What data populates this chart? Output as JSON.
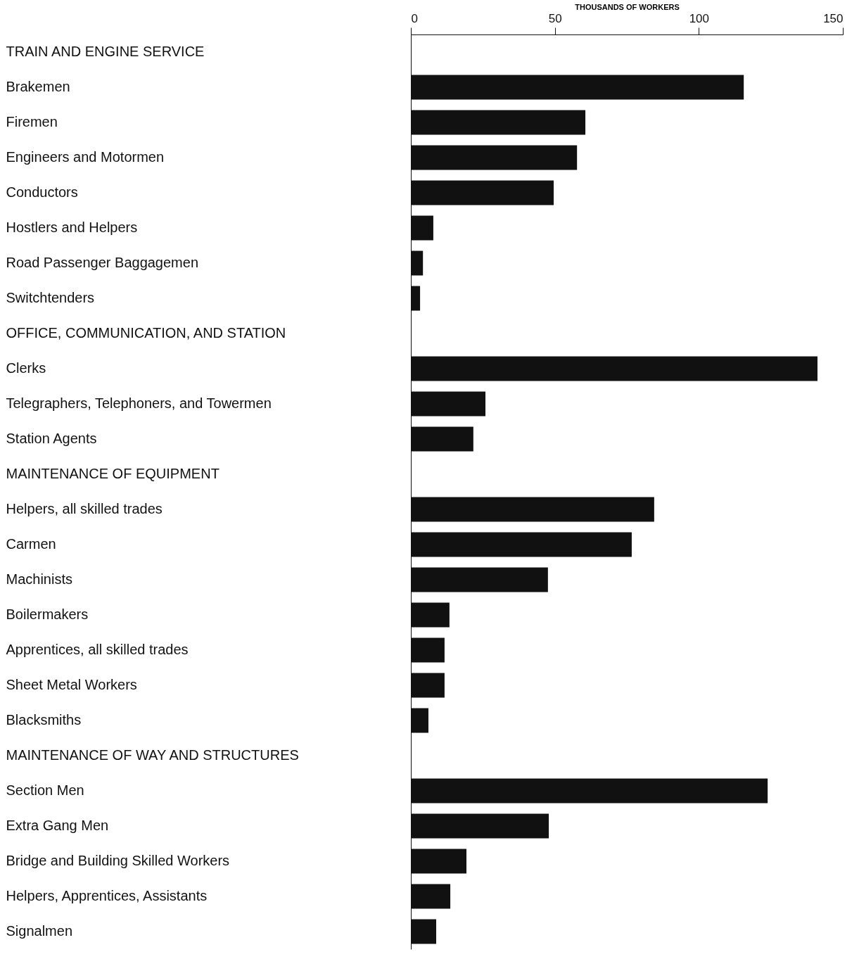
{
  "chart_data": {
    "type": "bar",
    "orientation": "horizontal",
    "xlabel": "THOUSANDS OF WORKERS",
    "categories": [
      "TRAIN AND ENGINE SERVICE",
      "Brakemen",
      "Firemen",
      "Engineers and Motormen",
      "Conductors",
      "Hostlers and Helpers",
      "Road Passenger Baggagemen",
      "Switchtenders",
      "OFFICE, COMMUNICATION, AND STATION",
      "Clerks",
      "Telegraphers, Telephoners, and Towermen",
      "Station Agents",
      "MAINTENANCE OF EQUIPMENT",
      "Helpers, all skilled trades",
      "Carmen",
      "Machinists",
      "Boilermakers",
      "Apprentices, all skilled trades",
      "Sheet Metal Workers",
      "Blacksmiths",
      "MAINTENANCE OF WAY AND STRUCTURES",
      "Section Men",
      "Extra Gang Men",
      "Bridge and Building Skilled Workers",
      "Helpers, Apprentices, Assistants",
      "Signalmen"
    ],
    "values": [
      null,
      115.6,
      60.6,
      57.7,
      49.6,
      7.8,
      4.2,
      3.2,
      null,
      141.2,
      25.9,
      21.7,
      null,
      84.5,
      76.7,
      47.6,
      13.4,
      11.7,
      11.7,
      6.1,
      null,
      123.9,
      47.9,
      19.3,
      13.7,
      8.8
    ],
    "color": "#111111",
    "xlim": [
      0,
      150
    ],
    "xticks": [
      0,
      50,
      100,
      150
    ],
    "grid": false
  }
}
